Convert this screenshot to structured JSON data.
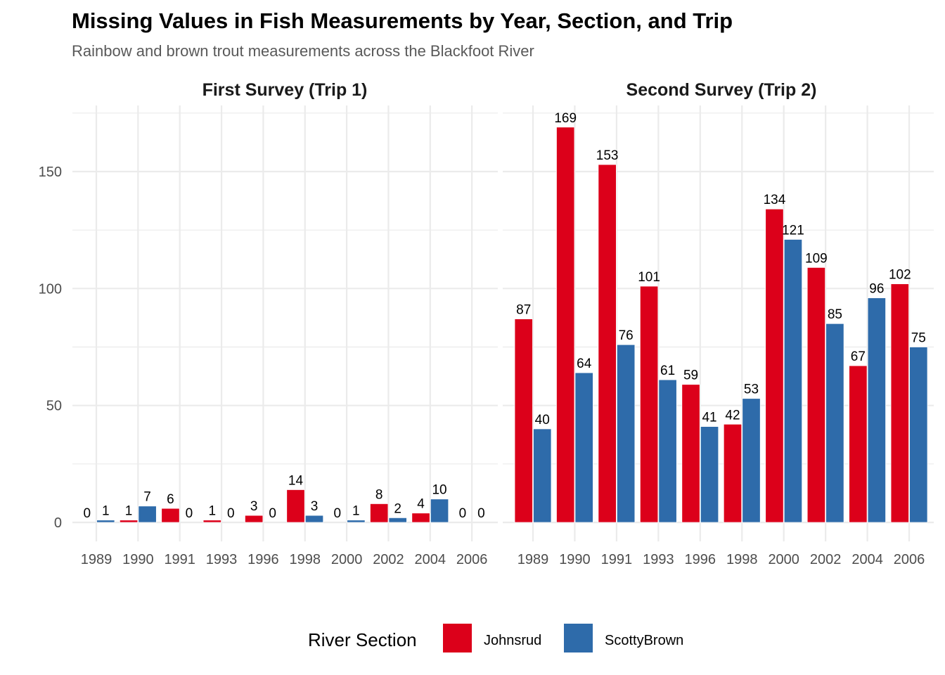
{
  "chart_data": {
    "type": "bar",
    "title": "Missing Values in Fish Measurements by Year, Section, and Trip",
    "subtitle": "Rainbow and brown trout measurements across the Blackfoot River",
    "xlabel": "",
    "ylabel": "",
    "ylim": [
      0,
      175
    ],
    "y_ticks": [
      0,
      50,
      100,
      150
    ],
    "grid": true,
    "categories": [
      "1989",
      "1990",
      "1991",
      "1993",
      "1996",
      "1998",
      "2000",
      "2002",
      "2004",
      "2006"
    ],
    "colors": {
      "Johnsrud": "#DC001A",
      "ScottyBrown": "#2E6BAA"
    },
    "legend": {
      "title": "River Section",
      "placement": "bottom",
      "entries": [
        "Johnsrud",
        "ScottyBrown"
      ]
    },
    "panels": [
      {
        "strip_label": "First Survey (Trip 1)",
        "series": [
          {
            "name": "Johnsrud",
            "values": [
              0,
              1,
              6,
              1,
              3,
              14,
              0,
              8,
              4,
              0
            ]
          },
          {
            "name": "ScottyBrown",
            "values": [
              1,
              7,
              0,
              0,
              0,
              3,
              1,
              2,
              10,
              0
            ]
          }
        ]
      },
      {
        "strip_label": "Second Survey (Trip 2)",
        "series": [
          {
            "name": "Johnsrud",
            "values": [
              87,
              169,
              153,
              101,
              59,
              42,
              134,
              109,
              67,
              102
            ]
          },
          {
            "name": "ScottyBrown",
            "values": [
              40,
              64,
              76,
              61,
              41,
              53,
              121,
              85,
              96,
              75
            ]
          }
        ]
      }
    ]
  }
}
